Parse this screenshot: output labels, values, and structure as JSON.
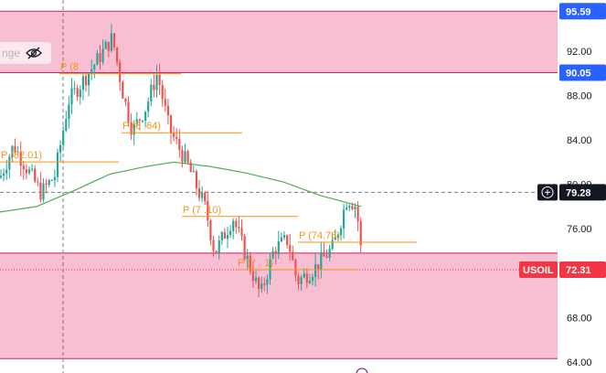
{
  "chart_data": {
    "type": "candlestick",
    "symbol": "USOIL",
    "y_axis": {
      "ticks": [
        "95.59",
        "92.00",
        "90.05",
        "88.00",
        "84.00",
        "80.00",
        "79.28",
        "76.00",
        "72.31",
        "68.00",
        "64.00"
      ],
      "tick_values": [
        92,
        88,
        84,
        80,
        76,
        72,
        68,
        64
      ],
      "ylim": [
        63.0,
        96.6
      ]
    },
    "price_tags": [
      {
        "label": "95.59",
        "value": 95.59,
        "color": "#2962ff"
      },
      {
        "label": "90.05",
        "value": 90.05,
        "color": "#2962ff"
      },
      {
        "label": "79.28",
        "value": 79.28,
        "color": "#131722",
        "crosshair": true
      },
      {
        "label": "72.31",
        "value": 72.31,
        "color": "#f23645",
        "symbol_tag": "USOIL"
      }
    ],
    "zones": [
      {
        "name": "upper-zone",
        "from": 90.05,
        "to": 95.59,
        "color": "#f8bbd0"
      },
      {
        "name": "lower-zone",
        "from": 64.3,
        "to": 73.8,
        "color": "#f8bbd0"
      }
    ],
    "pivots": [
      {
        "label": "P (82.01)",
        "value": 82.01,
        "x_start": 0,
        "x_end": 130
      },
      {
        "label": "P (8",
        "value": 89.96,
        "x_start": 65,
        "x_end": 198
      },
      {
        "label": "P (8 .64)",
        "value": 84.64,
        "x_start": 133,
        "x_end": 265
      },
      {
        "label": "P (7 .10)",
        "value": 77.1,
        "x_start": 199,
        "x_end": 326
      },
      {
        "label": "P (7 . 1)",
        "value": 72.31,
        "x_start": 259,
        "x_end": 392
      },
      {
        "label": "P (74.78)",
        "value": 74.78,
        "x_start": 326,
        "x_end": 456
      }
    ],
    "moving_average": [
      [
        0,
        77.5
      ],
      [
        40,
        78.0
      ],
      [
        80,
        79.4
      ],
      [
        120,
        80.9
      ],
      [
        160,
        81.6
      ],
      [
        190,
        82.0
      ],
      [
        230,
        81.6
      ],
      [
        270,
        81.0
      ],
      [
        310,
        80.2
      ],
      [
        350,
        79.0
      ],
      [
        395,
        78.0
      ]
    ],
    "crosshair_price": 79.28,
    "last_price": 72.31,
    "hidden_series_label": "nge"
  }
}
